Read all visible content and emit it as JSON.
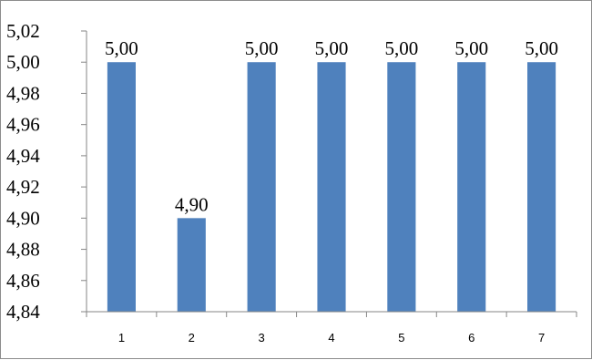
{
  "chart_data": {
    "type": "bar",
    "categories": [
      "1",
      "2",
      "3",
      "4",
      "5",
      "6",
      "7"
    ],
    "values": [
      5.0,
      4.9,
      5.0,
      5.0,
      5.0,
      5.0,
      5.0
    ],
    "data_labels": [
      "5,00",
      "4,90",
      "5,00",
      "5,00",
      "5,00",
      "5,00",
      "5,00"
    ],
    "y_ticks": [
      "4,84",
      "4,86",
      "4,88",
      "4,90",
      "4,92",
      "4,94",
      "4,96",
      "4,98",
      "5,00",
      "5,02"
    ],
    "ylim": [
      4.84,
      5.02
    ],
    "ytick_step": 0.02,
    "grid": false,
    "legend": "none",
    "bar_color": "#4f81bd",
    "axis_color": "#868686"
  }
}
